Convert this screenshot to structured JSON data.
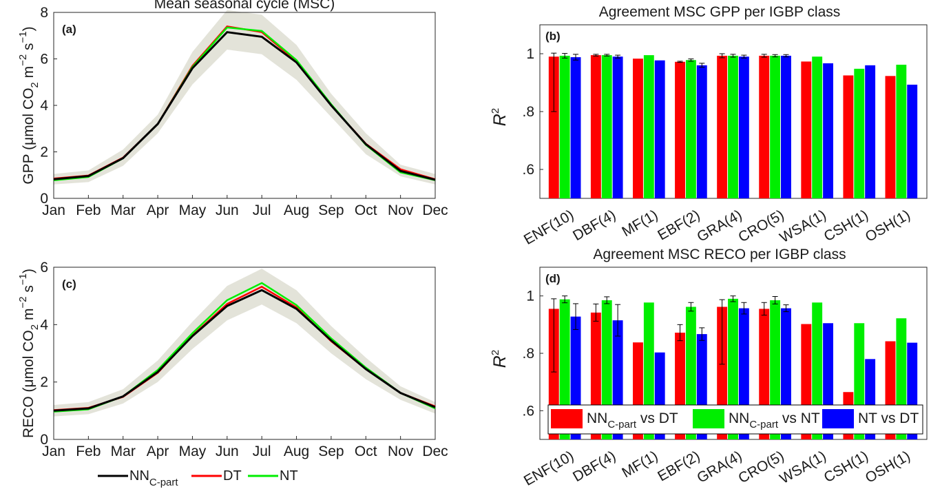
{
  "colors": {
    "nn": "#000000",
    "dt": "#ff0000",
    "nt": "#00ee00",
    "ntdt": "#0000ff",
    "axis": "#262626"
  },
  "bottom_legend": [
    {
      "key": "nn",
      "label": "NN",
      "sub": "C-part"
    },
    {
      "key": "dt",
      "label": "DT",
      "sub": ""
    },
    {
      "key": "nt",
      "label": "NT",
      "sub": ""
    }
  ],
  "chart_data": [
    {
      "id": "a",
      "panel_label": "(a)",
      "type": "line",
      "title": "Mean seasonal cycle (MSC)",
      "ylabel": {
        "main": "GPP (μmol CO",
        "sub": "2",
        "mid": " m",
        "sup1": "−2",
        "mid2": " s",
        "sup2": "−1",
        "end": ")"
      },
      "x": [
        "Jan",
        "Feb",
        "Mar",
        "Apr",
        "May",
        "Jun",
        "Jul",
        "Aug",
        "Sep",
        "Oct",
        "Nov",
        "Dec"
      ],
      "ylim": [
        0,
        8
      ],
      "yticks": [
        "0",
        "2",
        "4",
        "6",
        "8"
      ],
      "series": [
        {
          "key": "dt",
          "values": [
            0.85,
            0.98,
            1.75,
            3.2,
            5.7,
            7.4,
            7.15,
            5.9,
            4.0,
            2.35,
            1.25,
            0.82
          ]
        },
        {
          "key": "nt",
          "values": [
            0.78,
            0.92,
            1.72,
            3.2,
            5.65,
            7.35,
            7.2,
            5.95,
            4.05,
            2.3,
            1.12,
            0.78
          ]
        },
        {
          "key": "nn",
          "values": [
            0.82,
            0.96,
            1.73,
            3.2,
            5.6,
            7.15,
            6.95,
            5.85,
            4.0,
            2.33,
            1.18,
            0.8
          ]
        }
      ],
      "band": {
        "lower": [
          0.6,
          0.7,
          1.4,
          2.8,
          4.9,
          6.4,
          6.2,
          5.1,
          3.5,
          1.9,
          0.95,
          0.6
        ],
        "upper": [
          1.05,
          1.2,
          2.1,
          3.6,
          6.3,
          8.1,
          7.9,
          6.6,
          4.5,
          2.8,
          1.45,
          1.05
        ]
      }
    },
    {
      "id": "c",
      "panel_label": "(c)",
      "type": "line",
      "title": "",
      "ylabel": {
        "main": "RECO (μmol CO",
        "sub": "2",
        "mid": " m",
        "sup1": "−2",
        "mid2": " s",
        "sup2": "−1",
        "end": ")"
      },
      "x": [
        "Jan",
        "Feb",
        "Mar",
        "Apr",
        "May",
        "Jun",
        "Jul",
        "Aug",
        "Sep",
        "Oct",
        "Nov",
        "Dec"
      ],
      "ylim": [
        0,
        6
      ],
      "yticks": [
        "0",
        "2",
        "4",
        "6"
      ],
      "series": [
        {
          "key": "dt",
          "values": [
            1.02,
            1.1,
            1.48,
            2.32,
            3.62,
            4.72,
            5.32,
            4.6,
            3.42,
            2.45,
            1.62,
            1.15
          ]
        },
        {
          "key": "nt",
          "values": [
            0.97,
            1.05,
            1.5,
            2.42,
            3.7,
            4.85,
            5.45,
            4.68,
            3.52,
            2.5,
            1.62,
            1.08
          ]
        },
        {
          "key": "nn",
          "values": [
            1.0,
            1.08,
            1.5,
            2.35,
            3.6,
            4.65,
            5.2,
            4.55,
            3.45,
            2.45,
            1.62,
            1.12
          ]
        }
      ],
      "band": {
        "lower": [
          0.8,
          0.88,
          1.25,
          2.0,
          3.15,
          4.15,
          4.7,
          4.05,
          3.0,
          2.1,
          1.38,
          0.9
        ],
        "upper": [
          1.2,
          1.3,
          1.75,
          2.75,
          4.1,
          5.35,
          5.95,
          5.2,
          3.95,
          2.85,
          1.85,
          1.3
        ]
      }
    },
    {
      "id": "b",
      "panel_label": "(b)",
      "type": "bar",
      "title": "Agreement MSC GPP per IGBP class",
      "ylabel": {
        "main": "R",
        "sup": "2"
      },
      "categories": [
        "ENF(10)",
        "DBF(4)",
        "MF(1)",
        "EBF(2)",
        "GRA(4)",
        "CRO(5)",
        "WSA(1)",
        "CSH(1)",
        "OSH(1)"
      ],
      "ylim": [
        0.5,
        1.1
      ],
      "yticks": [
        ".6",
        ".8",
        "1"
      ],
      "series": [
        {
          "key": "dt",
          "values": [
            0.99,
            0.995,
            0.983,
            0.972,
            0.993,
            0.993,
            0.973,
            0.925,
            0.923
          ],
          "err": [
            0.012,
            0.003,
            0,
            0.002,
            0.007,
            0.005,
            0,
            0,
            0
          ]
        },
        {
          "key": "nt",
          "values": [
            0.993,
            0.995,
            0.995,
            0.978,
            0.993,
            0.993,
            0.99,
            0.948,
            0.962
          ],
          "err": [
            0.008,
            0.003,
            0,
            0.004,
            0.005,
            0.004,
            0,
            0,
            0
          ]
        },
        {
          "key": "ntdt",
          "values": [
            0.988,
            0.99,
            0.977,
            0.96,
            0.99,
            0.993,
            0.967,
            0.96,
            0.893
          ],
          "err": [
            0.01,
            0.005,
            0,
            0.007,
            0.005,
            0.004,
            0,
            0,
            0
          ]
        }
      ],
      "low_err": [
        0.19,
        0,
        0,
        0,
        0,
        0,
        0,
        0,
        0
      ]
    },
    {
      "id": "d",
      "panel_label": "(d)",
      "type": "bar",
      "title": "Agreement MSC RECO per IGBP class",
      "ylabel": {
        "main": "R",
        "sup": "2"
      },
      "categories": [
        "ENF(10)",
        "DBF(4)",
        "MF(1)",
        "EBF(2)",
        "GRA(4)",
        "CRO(5)",
        "WSA(1)",
        "CSH(1)",
        "OSH(1)"
      ],
      "ylim": [
        0.5,
        1.1
      ],
      "yticks": [
        ".6",
        ".8",
        "1"
      ],
      "series": [
        {
          "key": "dt",
          "values": [
            0.955,
            0.942,
            0.838,
            0.872,
            0.962,
            0.955,
            0.902,
            0.665,
            0.842
          ],
          "err": [
            0.035,
            0.03,
            0,
            0.028,
            0.025,
            0.022,
            0,
            0,
            0
          ]
        },
        {
          "key": "nt",
          "values": [
            0.988,
            0.985,
            0.977,
            0.962,
            0.99,
            0.985,
            0.977,
            0.905,
            0.922
          ],
          "err": [
            0.012,
            0.012,
            0,
            0.015,
            0.01,
            0.013,
            0,
            0,
            0
          ]
        },
        {
          "key": "ntdt",
          "values": [
            0.928,
            0.915,
            0.803,
            0.867,
            0.957,
            0.957,
            0.905,
            0.78,
            0.837
          ],
          "err": [
            0.045,
            0.055,
            0,
            0.022,
            0.02,
            0.012,
            0,
            0,
            0
          ]
        }
      ],
      "low_err": [
        0.22,
        0,
        0,
        0,
        0.2,
        0,
        0,
        0,
        0
      ],
      "legend": [
        {
          "key": "dt",
          "label": "NN",
          "sub": "C-part",
          "rest": " vs DT"
        },
        {
          "key": "nt",
          "label": "NN",
          "sub": "C-part",
          "rest": " vs NT"
        },
        {
          "key": "ntdt",
          "label": "NT vs DT",
          "sub": "",
          "rest": ""
        }
      ]
    }
  ]
}
